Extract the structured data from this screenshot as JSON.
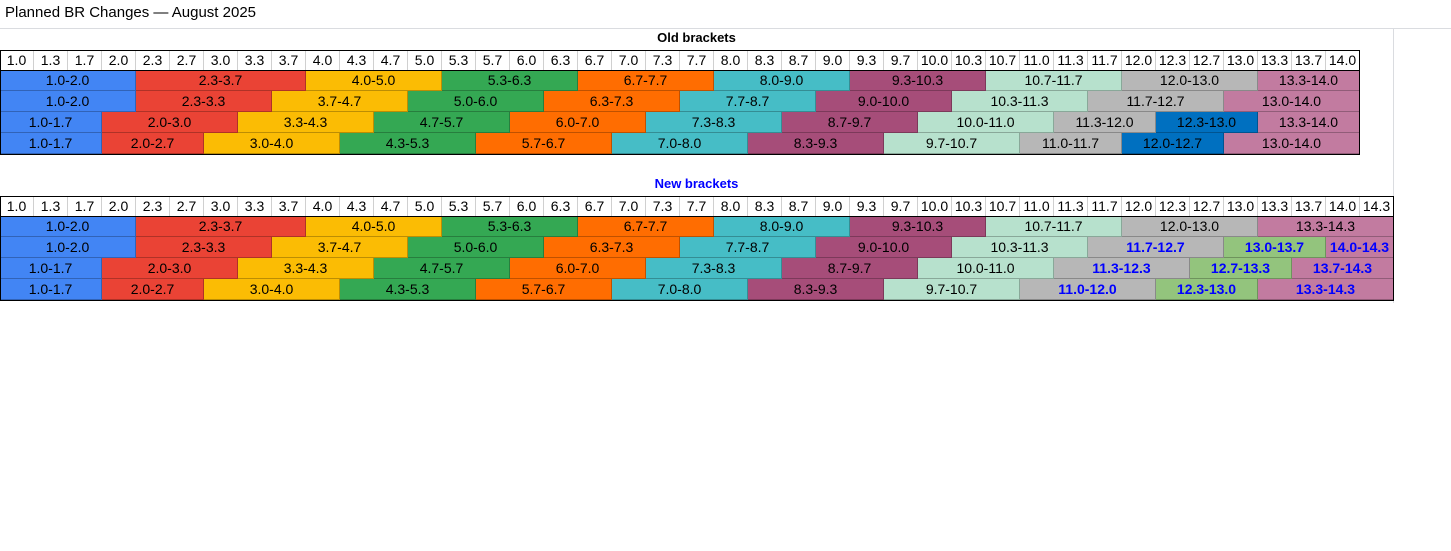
{
  "title": "Planned BR Changes — August 2025",
  "tables": [
    {
      "caption": "Old brackets",
      "caption_color": "#000000",
      "columns": [
        "1.0",
        "1.3",
        "1.7",
        "2.0",
        "2.3",
        "2.7",
        "3.0",
        "3.3",
        "3.7",
        "4.0",
        "4.3",
        "4.7",
        "5.0",
        "5.3",
        "5.7",
        "6.0",
        "6.3",
        "6.7",
        "7.0",
        "7.3",
        "7.7",
        "8.0",
        "8.3",
        "8.7",
        "9.0",
        "9.3",
        "9.7",
        "10.0",
        "10.3",
        "10.7",
        "11.0",
        "11.3",
        "11.7",
        "12.0",
        "12.3",
        "12.7",
        "13.0",
        "13.3",
        "13.7",
        "14.0"
      ],
      "rows": [
        [
          {
            "label": "1.0-2.0",
            "color": "#4285f4"
          },
          {
            "label": "2.3-3.7",
            "color": "#ea4335"
          },
          {
            "label": "4.0-5.0",
            "color": "#fbbc04"
          },
          {
            "label": "5.3-6.3",
            "color": "#34a853"
          },
          {
            "label": "6.7-7.7",
            "color": "#ff6d01"
          },
          {
            "label": "8.0-9.0",
            "color": "#46bdc6"
          },
          {
            "label": "9.3-10.3",
            "color": "#a64d79"
          },
          {
            "label": "10.7-11.7",
            "color": "#b7e1cd"
          },
          {
            "label": "12.0-13.0",
            "color": "#b7b7b7"
          },
          {
            "label": "13.3-14.0",
            "color": "#c27ba0"
          }
        ],
        [
          {
            "label": "1.0-2.0",
            "color": "#4285f4"
          },
          {
            "label": "2.3-3.3",
            "color": "#ea4335"
          },
          {
            "label": "3.7-4.7",
            "color": "#fbbc04"
          },
          {
            "label": "5.0-6.0",
            "color": "#34a853"
          },
          {
            "label": "6.3-7.3",
            "color": "#ff6d01"
          },
          {
            "label": "7.7-8.7",
            "color": "#46bdc6"
          },
          {
            "label": "9.0-10.0",
            "color": "#a64d79"
          },
          {
            "label": "10.3-11.3",
            "color": "#b7e1cd"
          },
          {
            "label": "11.7-12.7",
            "color": "#b7b7b7"
          },
          {
            "label": "13.0-14.0",
            "color": "#c27ba0"
          }
        ],
        [
          {
            "label": "1.0-1.7",
            "color": "#4285f4"
          },
          {
            "label": "2.0-3.0",
            "color": "#ea4335"
          },
          {
            "label": "3.3-4.3",
            "color": "#fbbc04"
          },
          {
            "label": "4.7-5.7",
            "color": "#34a853"
          },
          {
            "label": "6.0-7.0",
            "color": "#ff6d01"
          },
          {
            "label": "7.3-8.3",
            "color": "#46bdc6"
          },
          {
            "label": "8.7-9.7",
            "color": "#a64d79"
          },
          {
            "label": "10.0-11.0",
            "color": "#b7e1cd"
          },
          {
            "label": "11.3-12.0",
            "color": "#b7b7b7"
          },
          {
            "label": "12.3-13.0",
            "color": "#0070c0"
          },
          {
            "label": "13.3-14.0",
            "color": "#c27ba0"
          }
        ],
        [
          {
            "label": "1.0-1.7",
            "color": "#4285f4"
          },
          {
            "label": "2.0-2.7",
            "color": "#ea4335"
          },
          {
            "label": "3.0-4.0",
            "color": "#fbbc04"
          },
          {
            "label": "4.3-5.3",
            "color": "#34a853"
          },
          {
            "label": "5.7-6.7",
            "color": "#ff6d01"
          },
          {
            "label": "7.0-8.0",
            "color": "#46bdc6"
          },
          {
            "label": "8.3-9.3",
            "color": "#a64d79"
          },
          {
            "label": "9.7-10.7",
            "color": "#b7e1cd"
          },
          {
            "label": "11.0-11.7",
            "color": "#b7b7b7"
          },
          {
            "label": "12.0-12.7",
            "color": "#0070c0"
          },
          {
            "label": "13.0-14.0",
            "color": "#c27ba0"
          }
        ]
      ]
    },
    {
      "caption": "New brackets",
      "caption_color": "#0000ff",
      "columns": [
        "1.0",
        "1.3",
        "1.7",
        "2.0",
        "2.3",
        "2.7",
        "3.0",
        "3.3",
        "3.7",
        "4.0",
        "4.3",
        "4.7",
        "5.0",
        "5.3",
        "5.7",
        "6.0",
        "6.3",
        "6.7",
        "7.0",
        "7.3",
        "7.7",
        "8.0",
        "8.3",
        "8.7",
        "9.0",
        "9.3",
        "9.7",
        "10.0",
        "10.3",
        "10.7",
        "11.0",
        "11.3",
        "11.7",
        "12.0",
        "12.3",
        "12.7",
        "13.0",
        "13.3",
        "13.7",
        "14.0",
        "14.3"
      ],
      "rows": [
        [
          {
            "label": "1.0-2.0",
            "color": "#4285f4"
          },
          {
            "label": "2.3-3.7",
            "color": "#ea4335"
          },
          {
            "label": "4.0-5.0",
            "color": "#fbbc04"
          },
          {
            "label": "5.3-6.3",
            "color": "#34a853"
          },
          {
            "label": "6.7-7.7",
            "color": "#ff6d01"
          },
          {
            "label": "8.0-9.0",
            "color": "#46bdc6"
          },
          {
            "label": "9.3-10.3",
            "color": "#a64d79"
          },
          {
            "label": "10.7-11.7",
            "color": "#b7e1cd"
          },
          {
            "label": "12.0-13.0",
            "color": "#b7b7b7"
          },
          {
            "label": "13.3-14.3",
            "color": "#c27ba0"
          }
        ],
        [
          {
            "label": "1.0-2.0",
            "color": "#4285f4"
          },
          {
            "label": "2.3-3.3",
            "color": "#ea4335"
          },
          {
            "label": "3.7-4.7",
            "color": "#fbbc04"
          },
          {
            "label": "5.0-6.0",
            "color": "#34a853"
          },
          {
            "label": "6.3-7.3",
            "color": "#ff6d01"
          },
          {
            "label": "7.7-8.7",
            "color": "#46bdc6"
          },
          {
            "label": "9.0-10.0",
            "color": "#a64d79"
          },
          {
            "label": "10.3-11.3",
            "color": "#b7e1cd"
          },
          {
            "label": "11.7-12.7",
            "color": "#b7b7b7",
            "text_color": "#0000ff",
            "bold": true
          },
          {
            "label": "13.0-13.7",
            "color": "#93c47d",
            "text_color": "#0000ff",
            "bold": true
          },
          {
            "label": "14.0-14.3",
            "color": "#c27ba0",
            "text_color": "#0000ff",
            "bold": true
          }
        ],
        [
          {
            "label": "1.0-1.7",
            "color": "#4285f4"
          },
          {
            "label": "2.0-3.0",
            "color": "#ea4335"
          },
          {
            "label": "3.3-4.3",
            "color": "#fbbc04"
          },
          {
            "label": "4.7-5.7",
            "color": "#34a853"
          },
          {
            "label": "6.0-7.0",
            "color": "#ff6d01"
          },
          {
            "label": "7.3-8.3",
            "color": "#46bdc6"
          },
          {
            "label": "8.7-9.7",
            "color": "#a64d79"
          },
          {
            "label": "10.0-11.0",
            "color": "#b7e1cd"
          },
          {
            "label": "11.3-12.3",
            "color": "#b7b7b7",
            "text_color": "#0000ff",
            "bold": true
          },
          {
            "label": "12.7-13.3",
            "color": "#93c47d",
            "text_color": "#0000ff",
            "bold": true
          },
          {
            "label": "13.7-14.3",
            "color": "#c27ba0",
            "text_color": "#0000ff",
            "bold": true
          }
        ],
        [
          {
            "label": "1.0-1.7",
            "color": "#4285f4"
          },
          {
            "label": "2.0-2.7",
            "color": "#ea4335"
          },
          {
            "label": "3.0-4.0",
            "color": "#fbbc04"
          },
          {
            "label": "4.3-5.3",
            "color": "#34a853"
          },
          {
            "label": "5.7-6.7",
            "color": "#ff6d01"
          },
          {
            "label": "7.0-8.0",
            "color": "#46bdc6"
          },
          {
            "label": "8.3-9.3",
            "color": "#a64d79"
          },
          {
            "label": "9.7-10.7",
            "color": "#b7e1cd"
          },
          {
            "label": "11.0-12.0",
            "color": "#b7b7b7",
            "text_color": "#0000ff",
            "bold": true
          },
          {
            "label": "12.3-13.0",
            "color": "#93c47d",
            "text_color": "#0000ff",
            "bold": true
          },
          {
            "label": "13.3-14.3",
            "color": "#c27ba0",
            "text_color": "#0000ff",
            "bold": true
          }
        ]
      ]
    }
  ]
}
